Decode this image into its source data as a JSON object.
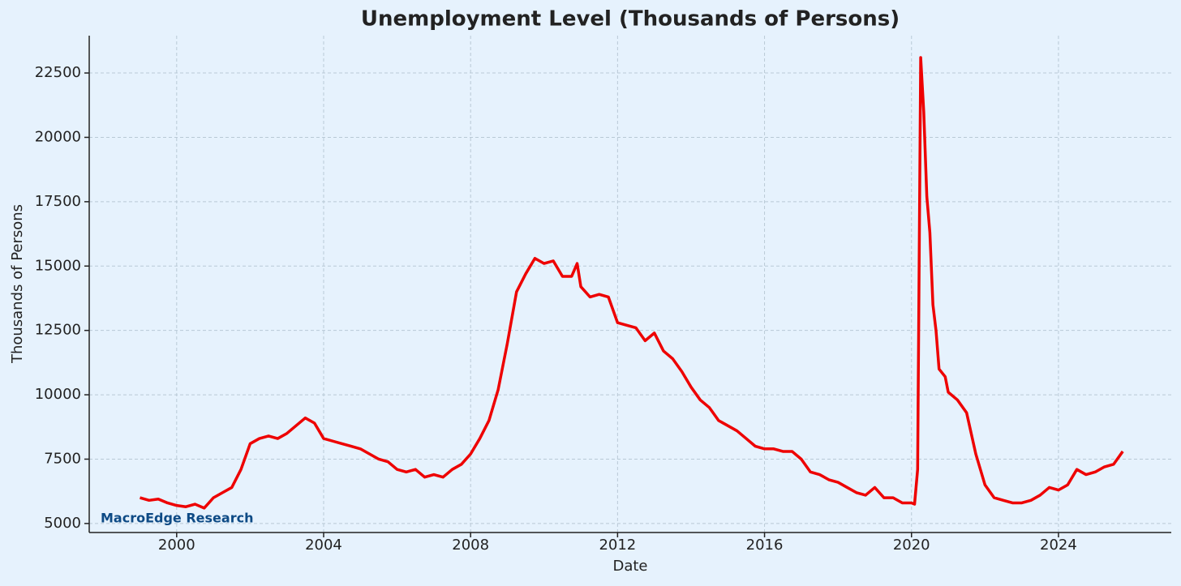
{
  "chart_data": {
    "type": "line",
    "title": "Unemployment Level (Thousands of Persons)",
    "x_label": "Date",
    "y_label": "Thousands of Persons",
    "annotation": "MacroEdge Research",
    "color": "#ee0000",
    "grid": true,
    "x": [
      1999.0,
      1999.25,
      1999.5,
      1999.75,
      2000.0,
      2000.25,
      2000.5,
      2000.75,
      2001.0,
      2001.25,
      2001.5,
      2001.75,
      2002.0,
      2002.25,
      2002.5,
      2002.75,
      2003.0,
      2003.25,
      2003.5,
      2003.75,
      2004.0,
      2004.25,
      2004.5,
      2004.75,
      2005.0,
      2005.25,
      2005.5,
      2005.75,
      2006.0,
      2006.25,
      2006.5,
      2006.75,
      2007.0,
      2007.25,
      2007.5,
      2007.75,
      2008.0,
      2008.25,
      2008.5,
      2008.75,
      2009.0,
      2009.25,
      2009.5,
      2009.75,
      2010.0,
      2010.25,
      2010.5,
      2010.75,
      2010.9,
      2011.0,
      2011.25,
      2011.5,
      2011.75,
      2012.0,
      2012.25,
      2012.5,
      2012.75,
      2013.0,
      2013.25,
      2013.5,
      2013.75,
      2014.0,
      2014.25,
      2014.5,
      2014.75,
      2015.0,
      2015.25,
      2015.5,
      2015.75,
      2016.0,
      2016.25,
      2016.5,
      2016.75,
      2017.0,
      2017.25,
      2017.5,
      2017.75,
      2018.0,
      2018.25,
      2018.5,
      2018.75,
      2019.0,
      2019.25,
      2019.5,
      2019.75,
      2020.0,
      2020.083,
      2020.167,
      2020.25,
      2020.333,
      2020.417,
      2020.5,
      2020.583,
      2020.667,
      2020.75,
      2020.917,
      2021.0,
      2021.25,
      2021.5,
      2021.75,
      2022.0,
      2022.25,
      2022.5,
      2022.75,
      2023.0,
      2023.25,
      2023.5,
      2023.75,
      2024.0,
      2024.25,
      2024.5,
      2024.75,
      2025.0,
      2025.25,
      2025.5,
      2025.75
    ],
    "values": [
      6000,
      5900,
      5950,
      5800,
      5700,
      5650,
      5750,
      5600,
      6000,
      6200,
      6400,
      7100,
      8100,
      8300,
      8400,
      8300,
      8500,
      8800,
      9100,
      8900,
      8300,
      8200,
      8100,
      8000,
      7900,
      7700,
      7500,
      7400,
      7100,
      7000,
      7100,
      6800,
      6900,
      6800,
      7100,
      7300,
      7700,
      8300,
      9000,
      10200,
      12000,
      14000,
      14700,
      15300,
      15100,
      15200,
      14600,
      14600,
      15100,
      14200,
      13800,
      13900,
      13800,
      12800,
      12700,
      12600,
      12100,
      12400,
      11700,
      11400,
      10900,
      10300,
      9800,
      9500,
      9000,
      8800,
      8600,
      8300,
      8000,
      7900,
      7900,
      7800,
      7800,
      7500,
      7000,
      6900,
      6700,
      6600,
      6400,
      6200,
      6100,
      6400,
      6000,
      6000,
      5800,
      5800,
      5750,
      7100,
      23100,
      21000,
      17700,
      16300,
      13500,
      12500,
      11000,
      10700,
      10100,
      9800,
      9300,
      7700,
      6500,
      6000,
      5900,
      5800,
      5800,
      5900,
      6100,
      6400,
      6300,
      6500,
      7100,
      6900,
      7000,
      7200,
      7300,
      7800
    ],
    "xlim": [
      1997.62,
      2027.07
    ],
    "xticks": [
      2000,
      2004,
      2008,
      2012,
      2016,
      2020,
      2024
    ],
    "ylim": [
      4650,
      23950
    ],
    "yticks": [
      5000,
      7500,
      10000,
      12500,
      15000,
      17500,
      20000,
      22500
    ]
  }
}
